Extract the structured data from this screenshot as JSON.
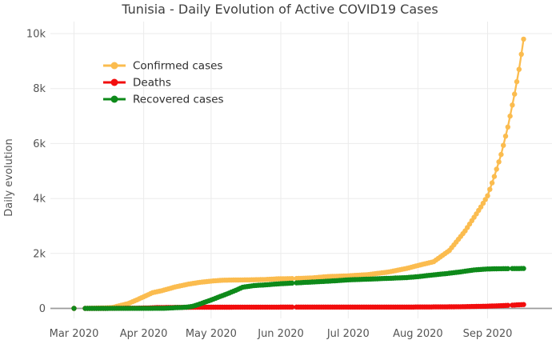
{
  "chart_data": {
    "type": "line",
    "title": "Tunisia - Daily Evolution of Active COVID19 Cases",
    "xlabel": "",
    "ylabel": "Daily evolution",
    "legend_position": "top-left-inside",
    "grid": true,
    "x_unit": "days since 1 Mar 2020",
    "x_range_days": [
      0,
      200
    ],
    "ylim": [
      0,
      10400
    ],
    "y_ticks": [
      {
        "label": "0",
        "value": 0
      },
      {
        "label": "2k",
        "value": 2000
      },
      {
        "label": "4k",
        "value": 4000
      },
      {
        "label": "6k",
        "value": 6000
      },
      {
        "label": "8k",
        "value": 8000
      },
      {
        "label": "10k",
        "value": 10000
      }
    ],
    "x_ticks": [
      {
        "label": "Mar 2020",
        "day": 0
      },
      {
        "label": "Apr 2020",
        "day": 31
      },
      {
        "label": "May 2020",
        "day": 61
      },
      {
        "label": "Jun 2020",
        "day": 92
      },
      {
        "label": "Jul 2020",
        "day": 122
      },
      {
        "label": "Aug 2020",
        "day": 153
      },
      {
        "label": "Sep 2020",
        "day": 184
      }
    ],
    "series": [
      {
        "name": "Confirmed cases",
        "key": "confirmed",
        "color": "#fbbc4f",
        "gap_days": [
          [
            1,
            4
          ],
          [
            98,
            98
          ]
        ],
        "anchors": [
          [
            0,
            1
          ],
          [
            5,
            2
          ],
          [
            13,
            18
          ],
          [
            17,
            29
          ],
          [
            21,
            114
          ],
          [
            24,
            173
          ],
          [
            28,
            312
          ],
          [
            31,
            423
          ],
          [
            35,
            574
          ],
          [
            39,
            643
          ],
          [
            45,
            780
          ],
          [
            51,
            884
          ],
          [
            56,
            949
          ],
          [
            61,
            994
          ],
          [
            66,
            1026
          ],
          [
            75,
            1037
          ],
          [
            84,
            1048
          ],
          [
            91,
            1077
          ],
          [
            98,
            1087
          ],
          [
            106,
            1110
          ],
          [
            113,
            1160
          ],
          [
            122,
            1186
          ],
          [
            131,
            1231
          ],
          [
            140,
            1327
          ],
          [
            148,
            1455
          ],
          [
            153,
            1561
          ],
          [
            160,
            1700
          ],
          [
            167,
            2107
          ],
          [
            174,
            2820
          ],
          [
            181,
            3690
          ],
          [
            184,
            4100
          ],
          [
            187,
            4800
          ],
          [
            190,
            5600
          ],
          [
            193,
            6600
          ],
          [
            196,
            7800
          ],
          [
            198,
            8700
          ],
          [
            200,
            9800
          ]
        ]
      },
      {
        "name": "Deaths",
        "key": "deaths",
        "color": "#f20d0d",
        "gap_days": [
          [
            1,
            4
          ],
          [
            98,
            98
          ],
          [
            194,
            194
          ]
        ],
        "anchors": [
          [
            0,
            0
          ],
          [
            13,
            0
          ],
          [
            17,
            3
          ],
          [
            21,
            6
          ],
          [
            24,
            8
          ],
          [
            28,
            10
          ],
          [
            31,
            14
          ],
          [
            35,
            22
          ],
          [
            38,
            31
          ],
          [
            45,
            37
          ],
          [
            52,
            42
          ],
          [
            61,
            43
          ],
          [
            75,
            46
          ],
          [
            91,
            48
          ],
          [
            122,
            50
          ],
          [
            153,
            51
          ],
          [
            167,
            57
          ],
          [
            174,
            64
          ],
          [
            181,
            76
          ],
          [
            184,
            81
          ],
          [
            190,
            98
          ],
          [
            194,
            115
          ],
          [
            197,
            128
          ],
          [
            200,
            141
          ]
        ]
      },
      {
        "name": "Recovered cases",
        "key": "recovered",
        "color": "#0e8a1a",
        "gap_days": [
          [
            1,
            4
          ],
          [
            98,
            98
          ],
          [
            194,
            194
          ]
        ],
        "anchors": [
          [
            0,
            0
          ],
          [
            5,
            0
          ],
          [
            40,
            5
          ],
          [
            45,
            25
          ],
          [
            50,
            43
          ],
          [
            53,
            81
          ],
          [
            56,
            160
          ],
          [
            59,
            250
          ],
          [
            61,
            305
          ],
          [
            64,
            402
          ],
          [
            68,
            526
          ],
          [
            72,
            660
          ],
          [
            75,
            770
          ],
          [
            80,
            830
          ],
          [
            86,
            862
          ],
          [
            91,
            895
          ],
          [
            98,
            925
          ],
          [
            103,
            948
          ],
          [
            108,
            968
          ],
          [
            115,
            1000
          ],
          [
            122,
            1040
          ],
          [
            131,
            1065
          ],
          [
            140,
            1095
          ],
          [
            148,
            1122
          ],
          [
            153,
            1156
          ],
          [
            160,
            1220
          ],
          [
            166,
            1270
          ],
          [
            172,
            1330
          ],
          [
            178,
            1400
          ],
          [
            184,
            1435
          ],
          [
            190,
            1445
          ],
          [
            200,
            1452
          ]
        ]
      }
    ],
    "colors": {
      "background": "#ffffff",
      "gridline": "#ebebeb",
      "zeroline": "#9b9b9b",
      "title_text": "#3f3f3f",
      "tick_text": "#555555",
      "legend_text": "#2d2d2d"
    }
  }
}
